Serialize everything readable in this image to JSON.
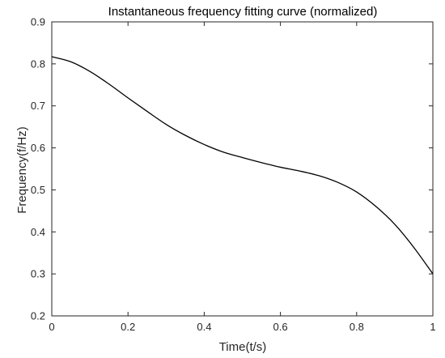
{
  "chart_data": {
    "type": "line",
    "title": "Instantaneous frequency fitting curve (normalized)",
    "xlabel": "Time(t/s)",
    "ylabel": "Frequency(f/Hz)",
    "xlim": [
      0,
      1
    ],
    "ylim": [
      0.2,
      0.9
    ],
    "xticks": [
      0,
      0.2,
      0.4,
      0.6,
      0.8,
      1
    ],
    "xtick_labels": [
      "0",
      "0.2",
      "0.4",
      "0.6",
      "0.8",
      "1"
    ],
    "yticks": [
      0.2,
      0.3,
      0.4,
      0.5,
      0.6,
      0.7,
      0.8,
      0.9
    ],
    "ytick_labels": [
      "0.2",
      "0.3",
      "0.4",
      "0.5",
      "0.6",
      "0.7",
      "0.8",
      "0.9"
    ],
    "grid": false,
    "legend": "none",
    "line_color": "#000000",
    "series": [
      {
        "x": [
          0,
          0.05,
          0.1,
          0.15,
          0.2,
          0.25,
          0.3,
          0.35,
          0.4,
          0.45,
          0.5,
          0.55,
          0.6,
          0.65,
          0.7,
          0.75,
          0.8,
          0.85,
          0.9,
          0.95,
          1.0
        ],
        "values": [
          0.817,
          0.805,
          0.782,
          0.752,
          0.719,
          0.687,
          0.656,
          0.63,
          0.608,
          0.59,
          0.577,
          0.565,
          0.554,
          0.545,
          0.534,
          0.518,
          0.495,
          0.461,
          0.418,
          0.363,
          0.3
        ]
      }
    ]
  }
}
